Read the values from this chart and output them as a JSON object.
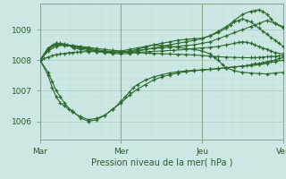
{
  "xlabel": "Pression niveau de la mer( hPa )",
  "bg_color": "#cce8e4",
  "plot_bg_color": "#cce8e4",
  "line_color": "#2d6a2d",
  "marker_color": "#2d6a2d",
  "grid_major_color": "#aaccc8",
  "grid_minor_color": "#bcdcd8",
  "yticks": [
    1006,
    1007,
    1008,
    1009
  ],
  "ylim": [
    1005.4,
    1009.85
  ],
  "xlim": [
    0,
    3.0
  ],
  "xtick_positions": [
    0,
    1,
    2,
    3
  ],
  "xtick_labels": [
    "Mar",
    "Mer",
    "Jeu",
    "Ven"
  ],
  "multi_series": [
    {
      "x": [
        0.0,
        0.05,
        0.1,
        0.15,
        0.2,
        0.25,
        0.3,
        0.35,
        0.4,
        0.45,
        0.5,
        0.6,
        0.7,
        0.8,
        0.9,
        1.0,
        1.1,
        1.2,
        1.3,
        1.4,
        1.5,
        1.6,
        1.7,
        1.8,
        1.9,
        2.0,
        2.1,
        2.2,
        2.3,
        2.4,
        2.5,
        2.6,
        2.65,
        2.7,
        2.75,
        2.8,
        2.85,
        2.9,
        2.95,
        3.0
      ],
      "y": [
        1008.0,
        1008.05,
        1008.1,
        1008.15,
        1008.18,
        1008.2,
        1008.22,
        1008.24,
        1008.25,
        1008.26,
        1008.27,
        1008.28,
        1008.28,
        1008.28,
        1008.27,
        1008.26,
        1008.25,
        1008.24,
        1008.23,
        1008.22,
        1008.21,
        1008.2,
        1008.19,
        1008.18,
        1008.17,
        1008.15,
        1008.13,
        1008.11,
        1008.1,
        1008.09,
        1008.08,
        1008.08,
        1008.08,
        1008.09,
        1008.1,
        1008.11,
        1008.12,
        1008.13,
        1008.14,
        1008.15
      ]
    },
    {
      "x": [
        0.0,
        0.08,
        0.16,
        0.25,
        0.33,
        0.42,
        0.5,
        0.6,
        0.7,
        0.8,
        0.9,
        1.0,
        1.1,
        1.2,
        1.35,
        1.5,
        1.65,
        1.8,
        1.9,
        2.0,
        2.1,
        2.2,
        2.3,
        2.4,
        2.45,
        2.5,
        2.55,
        2.6,
        2.65,
        2.7,
        2.75,
        2.8,
        2.85,
        2.9,
        3.0
      ],
      "y": [
        1008.0,
        1008.3,
        1008.5,
        1008.55,
        1008.5,
        1008.4,
        1008.35,
        1008.3,
        1008.28,
        1008.25,
        1008.22,
        1008.2,
        1008.22,
        1008.25,
        1008.28,
        1008.3,
        1008.32,
        1008.35,
        1008.38,
        1008.4,
        1008.42,
        1008.45,
        1008.5,
        1008.55,
        1008.58,
        1008.6,
        1008.58,
        1008.55,
        1008.5,
        1008.45,
        1008.4,
        1008.35,
        1008.3,
        1008.25,
        1008.2
      ]
    },
    {
      "x": [
        0.0,
        0.1,
        0.2,
        0.3,
        0.4,
        0.5,
        0.6,
        0.7,
        0.8,
        0.9,
        1.0,
        1.1,
        1.2,
        1.3,
        1.4,
        1.5,
        1.6,
        1.7,
        1.8,
        1.9,
        2.0,
        2.1,
        2.2,
        2.3,
        2.4,
        2.5,
        2.6,
        2.7,
        2.8,
        2.9,
        3.0
      ],
      "y": [
        1008.0,
        1008.35,
        1008.5,
        1008.48,
        1008.45,
        1008.4,
        1008.35,
        1008.3,
        1008.28,
        1008.25,
        1008.25,
        1008.28,
        1008.3,
        1008.35,
        1008.38,
        1008.4,
        1008.42,
        1008.45,
        1008.48,
        1008.5,
        1008.55,
        1008.6,
        1008.7,
        1008.8,
        1008.9,
        1009.0,
        1009.1,
        1009.2,
        1009.3,
        1009.2,
        1009.1
      ]
    },
    {
      "x": [
        0.0,
        0.1,
        0.15,
        0.2,
        0.25,
        0.3,
        0.4,
        0.5,
        0.6,
        0.7,
        0.8,
        0.9,
        1.0,
        1.05,
        1.1,
        1.15,
        1.2,
        1.3,
        1.4,
        1.5,
        1.6,
        1.7,
        1.8,
        1.9,
        2.0,
        2.1,
        2.2,
        2.3,
        2.4,
        2.5,
        2.55,
        2.6,
        2.65,
        2.7,
        2.75,
        2.8,
        2.85,
        2.9,
        2.95,
        3.0
      ],
      "y": [
        1008.0,
        1007.6,
        1007.3,
        1007.0,
        1006.8,
        1006.6,
        1006.3,
        1006.15,
        1006.05,
        1006.1,
        1006.2,
        1006.4,
        1006.65,
        1006.8,
        1006.95,
        1007.1,
        1007.2,
        1007.35,
        1007.45,
        1007.52,
        1007.58,
        1007.62,
        1007.65,
        1007.67,
        1007.68,
        1007.7,
        1007.72,
        1007.75,
        1007.78,
        1007.8,
        1007.82,
        1007.85,
        1007.88,
        1007.9,
        1007.92,
        1007.95,
        1007.97,
        1008.0,
        1008.05,
        1008.1
      ]
    },
    {
      "x": [
        0.0,
        0.1,
        0.15,
        0.2,
        0.25,
        0.3,
        0.35,
        0.4,
        0.5,
        0.6,
        0.7,
        0.8,
        0.9,
        1.0,
        1.1,
        1.2,
        1.3,
        1.4,
        1.5,
        1.6,
        1.7,
        1.8,
        1.9,
        2.0,
        2.1,
        2.2,
        2.3,
        2.4,
        2.5,
        2.6,
        2.7,
        2.8,
        2.9,
        3.0
      ],
      "y": [
        1008.0,
        1007.5,
        1007.1,
        1006.8,
        1006.6,
        1006.5,
        1006.4,
        1006.35,
        1006.1,
        1006.0,
        1006.05,
        1006.2,
        1006.4,
        1006.6,
        1006.85,
        1007.05,
        1007.2,
        1007.35,
        1007.45,
        1007.52,
        1007.58,
        1007.62,
        1007.65,
        1007.68,
        1007.7,
        1007.73,
        1007.75,
        1007.78,
        1007.8,
        1007.82,
        1007.85,
        1007.9,
        1007.95,
        1008.0
      ]
    },
    {
      "x": [
        0.0,
        0.1,
        0.2,
        0.3,
        0.4,
        0.5,
        0.6,
        0.7,
        0.8,
        0.9,
        1.0,
        1.1,
        1.2,
        1.3,
        1.4,
        1.5,
        1.6,
        1.7,
        1.8,
        1.9,
        2.0,
        2.1,
        2.15,
        2.2,
        2.25,
        2.3,
        2.4,
        2.5,
        2.6,
        2.7,
        2.8,
        2.9,
        3.0
      ],
      "y": [
        1008.0,
        1008.3,
        1008.45,
        1008.5,
        1008.48,
        1008.45,
        1008.42,
        1008.38,
        1008.35,
        1008.32,
        1008.3,
        1008.35,
        1008.4,
        1008.45,
        1008.5,
        1008.48,
        1008.45,
        1008.42,
        1008.38,
        1008.35,
        1008.3,
        1008.2,
        1008.1,
        1008.0,
        1007.85,
        1007.75,
        1007.65,
        1007.6,
        1007.58,
        1007.56,
        1007.55,
        1007.58,
        1007.6
      ]
    },
    {
      "x": [
        0.0,
        0.1,
        0.2,
        0.3,
        0.4,
        0.5,
        0.6,
        0.7,
        0.8,
        0.9,
        1.0,
        1.1,
        1.2,
        1.3,
        1.4,
        1.5,
        1.6,
        1.7,
        1.8,
        1.9,
        2.0,
        2.1,
        2.2,
        2.3,
        2.4,
        2.5,
        2.6,
        2.65,
        2.7,
        2.75,
        2.8,
        2.85,
        2.9,
        3.0
      ],
      "y": [
        1008.0,
        1008.4,
        1008.55,
        1008.52,
        1008.48,
        1008.42,
        1008.38,
        1008.34,
        1008.3,
        1008.28,
        1008.25,
        1008.28,
        1008.3,
        1008.35,
        1008.4,
        1008.45,
        1008.5,
        1008.55,
        1008.6,
        1008.65,
        1008.7,
        1008.8,
        1008.95,
        1009.1,
        1009.3,
        1009.5,
        1009.6,
        1009.62,
        1009.65,
        1009.6,
        1009.5,
        1009.35,
        1009.2,
        1009.05
      ]
    },
    {
      "x": [
        0.0,
        0.1,
        0.2,
        0.3,
        0.4,
        0.5,
        0.6,
        0.7,
        0.8,
        0.9,
        1.0,
        1.1,
        1.2,
        1.3,
        1.4,
        1.5,
        1.6,
        1.7,
        1.8,
        1.9,
        2.0,
        2.1,
        2.2,
        2.3,
        2.35,
        2.4,
        2.45,
        2.5,
        2.55,
        2.6,
        2.65,
        2.7,
        2.75,
        2.8,
        2.85,
        2.9,
        2.95,
        3.0
      ],
      "y": [
        1008.0,
        1008.4,
        1008.55,
        1008.5,
        1008.45,
        1008.4,
        1008.35,
        1008.3,
        1008.28,
        1008.25,
        1008.28,
        1008.3,
        1008.35,
        1008.42,
        1008.5,
        1008.55,
        1008.6,
        1008.65,
        1008.68,
        1008.7,
        1008.72,
        1008.8,
        1008.9,
        1009.05,
        1009.15,
        1009.25,
        1009.3,
        1009.35,
        1009.3,
        1009.25,
        1009.15,
        1009.05,
        1008.95,
        1008.85,
        1008.75,
        1008.65,
        1008.55,
        1008.45
      ]
    }
  ]
}
